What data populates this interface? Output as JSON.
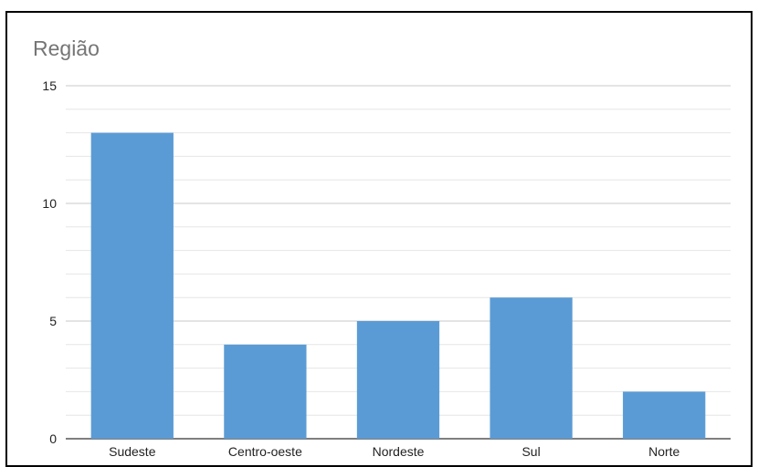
{
  "chart_data": {
    "type": "bar",
    "title": "Região",
    "categories": [
      "Sudeste",
      "Centro-oeste",
      "Nordeste",
      "Sul",
      "Norte"
    ],
    "values": [
      13,
      4,
      5,
      6,
      2
    ],
    "xlabel": "",
    "ylabel": "",
    "ylim": [
      0,
      15
    ],
    "yticks": [
      0,
      5,
      10,
      15
    ],
    "minor_gridlines_per_major": 5,
    "grid": true,
    "legend": "none",
    "bar_color": "#5b9bd5"
  }
}
